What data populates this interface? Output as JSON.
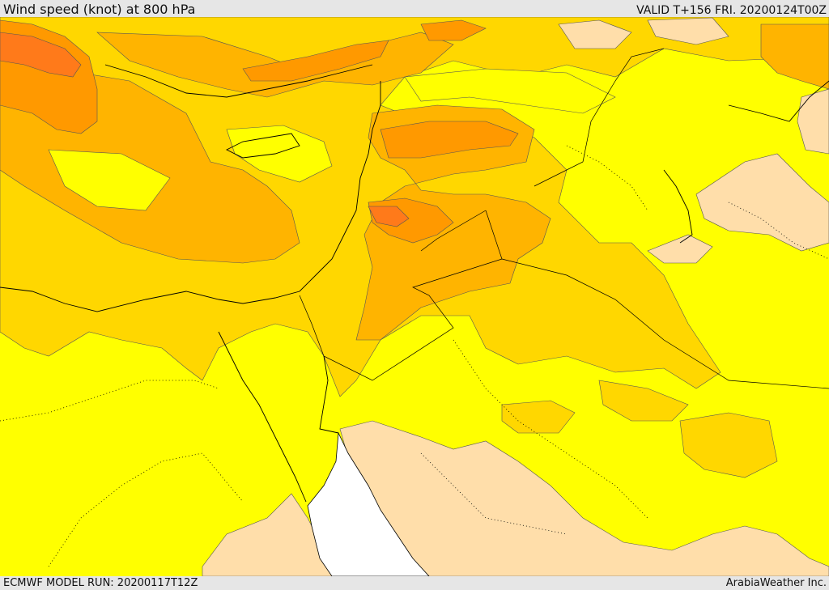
{
  "header": {
    "title": "Wind speed (knot) at 800 hPa",
    "valid": "VALID T+156 FRI. 20200124T00Z"
  },
  "footer": {
    "model_run": "ECMWF MODEL RUN: 20200117T12Z",
    "credit": "ArabiaWeather Inc."
  },
  "palette": {
    "peach": "#ffdeaa",
    "yellow": "#ffff00",
    "gold": "#ffd700",
    "amber": "#ffb400",
    "orange": "#ff9900",
    "deep_orange": "#ff7a1a",
    "sea_white": "#ffffff",
    "line": "#000000"
  }
}
